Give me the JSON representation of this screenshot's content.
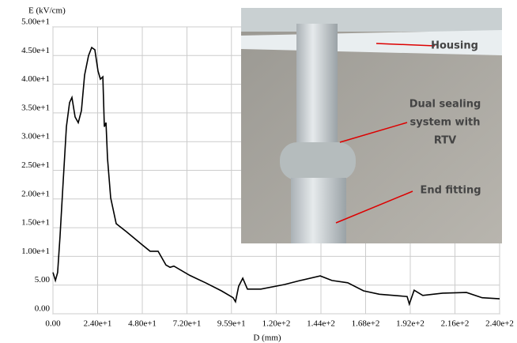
{
  "chart_data": {
    "type": "line",
    "ylabel": "E (kV/cm)",
    "xlabel": "D (mm)",
    "x": [
      0,
      1.3,
      2.5,
      3.8,
      5.5,
      7.2,
      8.9,
      10.2,
      11.9,
      13.6,
      15.3,
      17,
      19.1,
      20.8,
      22.5,
      24.2,
      25.5,
      26.8,
      27.6,
      28.5,
      29.3,
      31,
      34,
      39.5,
      48,
      52.2,
      56.5,
      60.7,
      62.9,
      65,
      73.5,
      82,
      90.5,
      96.8,
      98.1,
      99.8,
      102,
      104.5,
      111.7,
      124.4,
      132.9,
      143.6,
      149.9,
      158.4,
      166.9,
      175.4,
      190.3,
      191.5,
      194.1,
      198.7,
      209.4,
      222.2,
      230.6,
      240
    ],
    "series": [
      {
        "color": "#000000",
        "values": [
          7.2,
          5.8,
          7.2,
          13.4,
          23,
          32.6,
          36.8,
          37.7,
          34.3,
          33.3,
          35.4,
          41.6,
          45,
          46.4,
          46,
          42.3,
          40.9,
          41.3,
          32.6,
          33.3,
          27.1,
          20.2,
          15.7,
          14.3,
          12,
          10.9,
          10.9,
          8.5,
          8.1,
          8.3,
          6.7,
          5.4,
          4,
          2.8,
          2.1,
          4.8,
          6.2,
          4.3,
          4.3,
          5.1,
          5.8,
          6.6,
          5.8,
          5.4,
          4,
          3.4,
          3,
          1.7,
          4.1,
          3.2,
          3.6,
          3.7,
          2.8,
          2.6
        ]
      }
    ],
    "xlim": [
      0,
      240
    ],
    "xticks": [
      {
        "value": 0,
        "label": "0.00"
      },
      {
        "value": 24,
        "label": "2.40e+1"
      },
      {
        "value": 48,
        "label": "4.80e+1"
      },
      {
        "value": 72,
        "label": "7.20e+1"
      },
      {
        "value": 95.9,
        "label": "9.59e+1"
      },
      {
        "value": 120,
        "label": "1.20e+2"
      },
      {
        "value": 144,
        "label": "1.44e+2"
      },
      {
        "value": 168,
        "label": "1.68e+2"
      },
      {
        "value": 192,
        "label": "1.92e+2"
      },
      {
        "value": 216,
        "label": "2.16e+2"
      },
      {
        "value": 240,
        "label": "2.40e+2"
      }
    ],
    "ylim": [
      0,
      50
    ],
    "yticks": [
      {
        "value": 0,
        "label": "0.00"
      },
      {
        "value": 5,
        "label": "5.00"
      },
      {
        "value": 10,
        "label": "1.00e+1"
      },
      {
        "value": 15,
        "label": "1.50e+1"
      },
      {
        "value": 20,
        "label": "2.00e+1"
      },
      {
        "value": 25,
        "label": "2.50e+1"
      },
      {
        "value": 30,
        "label": "3.00e+1"
      },
      {
        "value": 35,
        "label": "3.50e+1"
      },
      {
        "value": 40,
        "label": "4.00e+1"
      },
      {
        "value": 45,
        "label": "4.50e+1"
      },
      {
        "value": 50,
        "label": "5.00e+1"
      }
    ],
    "grid": true,
    "annotations": [
      {
        "lines": [
          "Housing"
        ]
      },
      {
        "lines": [
          "Dual sealing",
          "system with",
          "RTV"
        ]
      },
      {
        "lines": [
          "End fitting"
        ]
      }
    ]
  }
}
